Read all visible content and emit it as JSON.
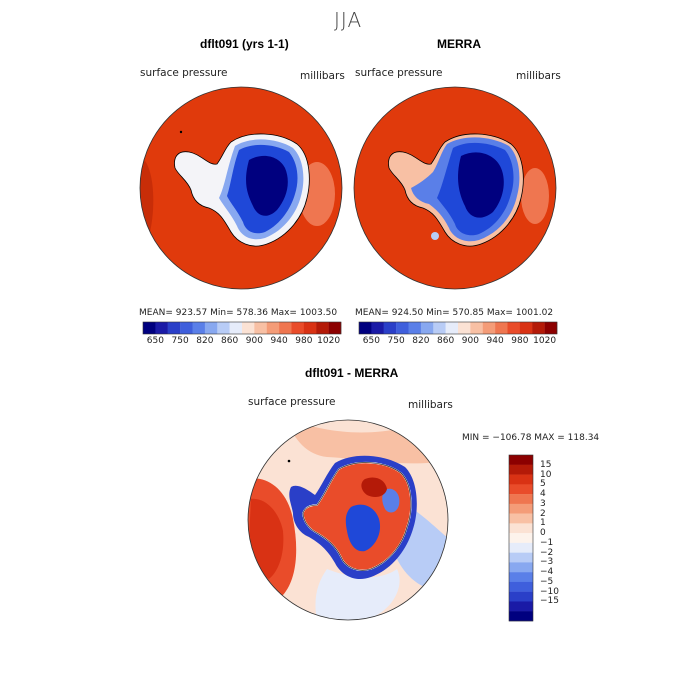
{
  "figure": {
    "title": "JJA"
  },
  "panels": [
    {
      "title": "dflt091 (yrs 1-1)",
      "variable": "surface pressure",
      "units": "millibars",
      "stats": "MEAN= 923.57   Min= 578.36   Max= 1003.50"
    },
    {
      "title": "MERRA",
      "variable": "surface pressure",
      "units": "millibars",
      "stats": "MEAN= 924.50   Min= 570.85   Max= 1001.02"
    }
  ],
  "colorbar_abs": {
    "colors": [
      "#00007f",
      "#1a1aa6",
      "#2a3fc8",
      "#3f5fdc",
      "#5a7fe8",
      "#88a8f0",
      "#b8ccf6",
      "#e6ecfa",
      "#fbe2d4",
      "#f8c0a4",
      "#f49c78",
      "#ef7650",
      "#e94c2a",
      "#d93214",
      "#b41a08",
      "#8c0000"
    ],
    "tick_labels": [
      "650",
      "750",
      "820",
      "860",
      "900",
      "940",
      "980",
      "1020"
    ],
    "tick_positions": [
      1,
      3,
      5,
      7,
      9,
      11,
      13,
      15
    ]
  },
  "diff_panel": {
    "title": "dflt091 - MERRA",
    "variable": "surface pressure",
    "units": "millibars",
    "minmax": "MIN = −106.78 MAX = 118.34"
  },
  "colorbar_diff": {
    "colors": [
      "#8c0000",
      "#b41a08",
      "#d93214",
      "#e94c2a",
      "#ef7650",
      "#f49c78",
      "#f8c0a4",
      "#fbe2d4",
      "#fdf3ec",
      "#e6ecfa",
      "#b8ccf6",
      "#88a8f0",
      "#5a7fe8",
      "#3f5fdc",
      "#2a3fc8",
      "#1a1aa6",
      "#00007f"
    ],
    "tick_labels": [
      "15",
      "10",
      "5",
      "4",
      "3",
      "2",
      "1",
      "0",
      "−1",
      "−2",
      "−3",
      "−4",
      "−5",
      "−10",
      "−15"
    ]
  },
  "map_colors": {
    "ocean": "#e03a0c",
    "ocean_dark": "#c82d08",
    "ice_edge": "#f4f4f8",
    "plateau_mid": "#1f48d8",
    "plateau_core": "#00007f",
    "diff_bg": "#fbe2d4",
    "diff_pos": "#e94c2a",
    "diff_neg": "#3f5fdc",
    "diff_light_blue": "#b8ccf6"
  }
}
